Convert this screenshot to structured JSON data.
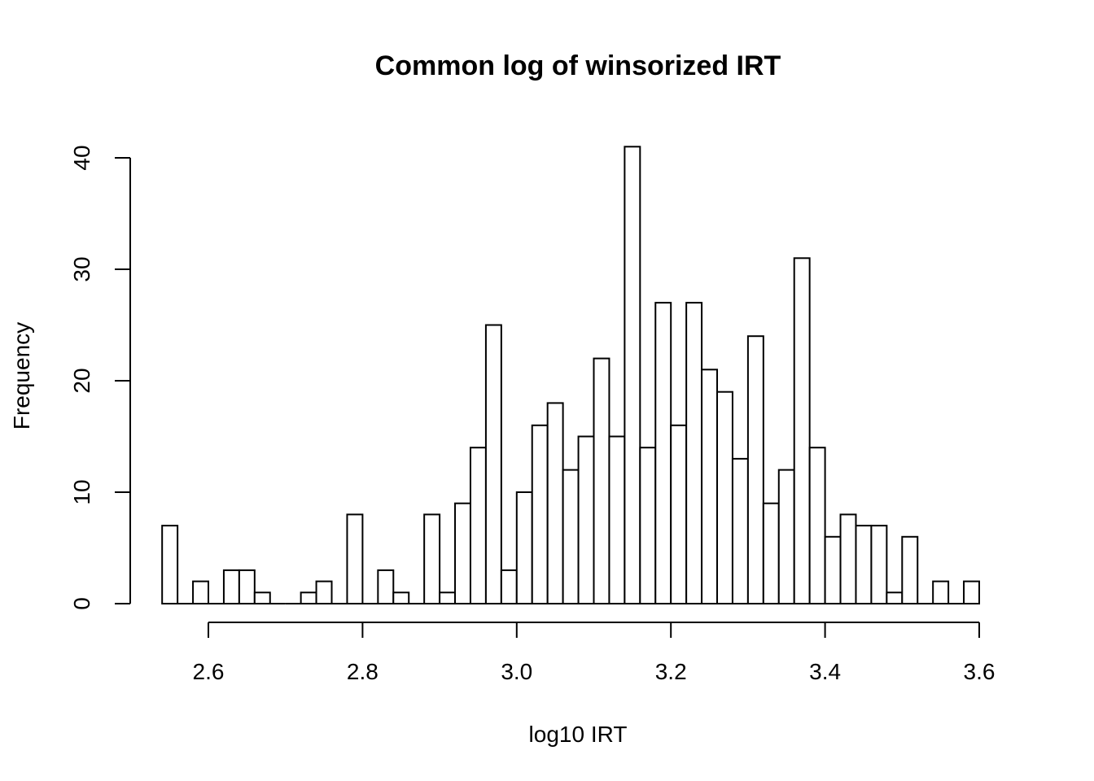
{
  "chart_data": {
    "type": "bar",
    "title": "Common log of winsorized IRT",
    "xlabel": "log10 IRT",
    "ylabel": "Frequency",
    "bin_width": 0.02,
    "bin_start": 2.54,
    "values": [
      7,
      0,
      2,
      0,
      3,
      3,
      1,
      0,
      0,
      1,
      2,
      0,
      8,
      0,
      3,
      1,
      0,
      8,
      1,
      9,
      14,
      25,
      3,
      10,
      16,
      18,
      12,
      15,
      22,
      15,
      41,
      14,
      27,
      16,
      27,
      21,
      19,
      13,
      24,
      9,
      12,
      31,
      14,
      6,
      8,
      7,
      7,
      1,
      6,
      0,
      2,
      0,
      2
    ],
    "xlim": [
      2.54,
      3.6
    ],
    "ylim": [
      0,
      40
    ],
    "x_ticks": [
      "2.6",
      "2.8",
      "3.0",
      "3.2",
      "3.4",
      "3.6"
    ],
    "y_ticks": [
      "0",
      "10",
      "20",
      "30",
      "40"
    ],
    "grid": false,
    "legend": "none"
  }
}
